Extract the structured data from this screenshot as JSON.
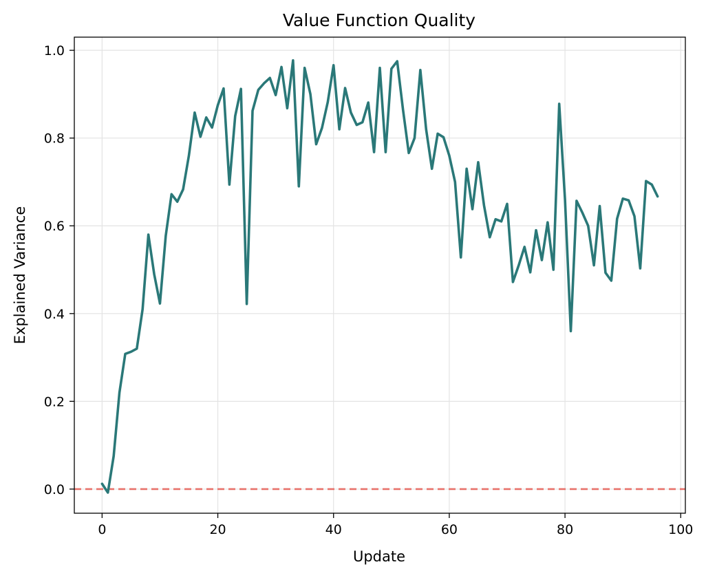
{
  "chart_data": {
    "type": "line",
    "title": "Value Function Quality",
    "xlabel": "Update",
    "ylabel": "Explained Variance",
    "xlim": [
      -4.8,
      100.8
    ],
    "ylim": [
      -0.055,
      1.03
    ],
    "xticks": [
      0,
      20,
      40,
      60,
      80,
      100
    ],
    "yticks": [
      0.0,
      0.2,
      0.4,
      0.6,
      0.8,
      1.0
    ],
    "xtick_labels": [
      "0",
      "20",
      "40",
      "60",
      "80",
      "100"
    ],
    "ytick_labels": [
      "0.0",
      "0.2",
      "0.4",
      "0.6",
      "0.8",
      "1.0"
    ],
    "grid": true,
    "reference_line": {
      "y": 0.0,
      "style": "dashed",
      "color": "#e8726b"
    },
    "series": [
      {
        "color": "#2a7878",
        "x": [
          0,
          1,
          2,
          3,
          4,
          5,
          6,
          7,
          8,
          9,
          10,
          11,
          12,
          13,
          14,
          15,
          16,
          17,
          18,
          19,
          20,
          21,
          22,
          23,
          24,
          25,
          26,
          27,
          28,
          29,
          30,
          31,
          32,
          33,
          34,
          35,
          36,
          37,
          38,
          39,
          40,
          41,
          42,
          43,
          44,
          45,
          46,
          47,
          48,
          49,
          50,
          51,
          52,
          53,
          54,
          55,
          56,
          57,
          58,
          59,
          60,
          61,
          62,
          63,
          64,
          65,
          66,
          67,
          68,
          69,
          70,
          71,
          72,
          73,
          74,
          75,
          76,
          77,
          78,
          79,
          80,
          81,
          82,
          83,
          84,
          85,
          86,
          87,
          88,
          89,
          90,
          91,
          92,
          93,
          94,
          95,
          96
        ],
        "y": [
          0.012,
          -0.008,
          0.075,
          0.22,
          0.308,
          0.313,
          0.32,
          0.41,
          0.58,
          0.49,
          0.423,
          0.577,
          0.672,
          0.655,
          0.683,
          0.76,
          0.858,
          0.803,
          0.847,
          0.824,
          0.875,
          0.913,
          0.694,
          0.85,
          0.912,
          0.422,
          0.862,
          0.91,
          0.925,
          0.937,
          0.898,
          0.962,
          0.868,
          0.977,
          0.69,
          0.96,
          0.9,
          0.786,
          0.823,
          0.882,
          0.966,
          0.82,
          0.914,
          0.858,
          0.83,
          0.836,
          0.881,
          0.768,
          0.96,
          0.768,
          0.958,
          0.975,
          0.865,
          0.766,
          0.8,
          0.955,
          0.82,
          0.73,
          0.81,
          0.802,
          0.76,
          0.7,
          0.528,
          0.73,
          0.638,
          0.745,
          0.647,
          0.574,
          0.615,
          0.61,
          0.65,
          0.472,
          0.51,
          0.552,
          0.494,
          0.59,
          0.522,
          0.608,
          0.5,
          0.878,
          0.66,
          0.36,
          0.657,
          0.63,
          0.6,
          0.51,
          0.645,
          0.493,
          0.475,
          0.616,
          0.662,
          0.658,
          0.622,
          0.503,
          0.702,
          0.694,
          0.667
        ]
      }
    ]
  }
}
